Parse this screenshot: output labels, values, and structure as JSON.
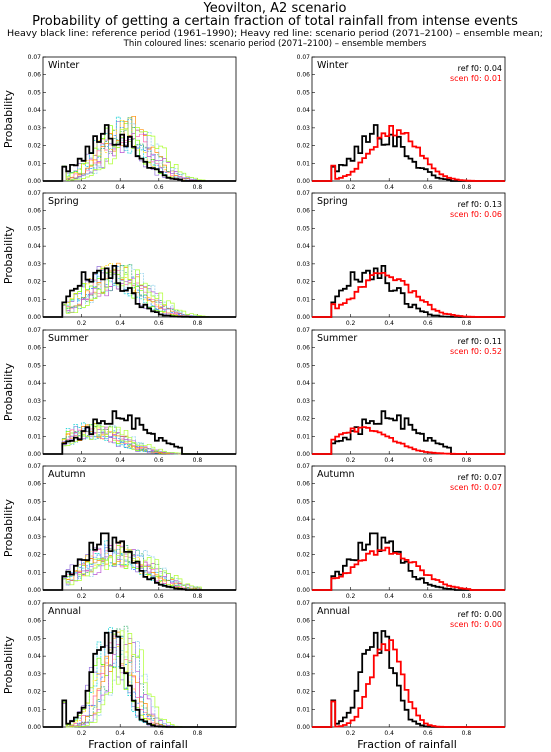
{
  "header": {
    "title": "Yeovilton, A2 scenario",
    "subtitle": "Probability of getting a certain fraction of total rainfall from intense events",
    "legend_line1": "Heavy black line: reference period (1961–1990); Heavy red line: scenario period (2071–2100) – ensemble mean;",
    "legend_line2": "Thin coloured lines: scenario period (2071–2100) – ensemble members"
  },
  "colors": {
    "reference": "#000000",
    "scenario_mean": "#ff0000",
    "members": [
      "#9370db",
      "#00ced1",
      "#7fff00",
      "#ffd700",
      "#ff69b4",
      "#1e90ff",
      "#ff8c00",
      "#3cb371",
      "#ba55d3",
      "#87ceeb",
      "#adff2f"
    ]
  },
  "chart_data": {
    "type": "line",
    "step": true,
    "xlabel": "Fraction of rainfall",
    "ylabel": "Probability",
    "xlim": [
      0,
      1
    ],
    "ylim": [
      0,
      0.07
    ],
    "xticks": [
      "0.2",
      "0.4",
      "0.6",
      "0.8"
    ],
    "xtick_values": [
      0.2,
      0.4,
      0.6,
      0.8
    ],
    "yticks": [
      "0.00",
      "0.01",
      "0.02",
      "0.03",
      "0.04",
      "0.05",
      "0.06",
      "0.07"
    ],
    "ytick_values": [
      0,
      0.01,
      0.02,
      0.03,
      0.04,
      0.05,
      0.06,
      0.07
    ],
    "f0_ref_label": "ref  f0:",
    "f0_scen_label": "scen f0:",
    "panels": [
      {
        "season": "Winter",
        "ref_f0": "0.04",
        "scen_f0": "0.01",
        "ref": {
          "mu": 0.36,
          "sd": 0.13,
          "peak": 0.027,
          "start": 0.1,
          "end": 0.72
        },
        "scen": {
          "mu": 0.43,
          "sd": 0.12,
          "peak": 0.029,
          "start": 0.1,
          "end": 0.83
        }
      },
      {
        "season": "Spring",
        "ref_f0": "0.13",
        "scen_f0": "0.06",
        "ref": {
          "mu": 0.3,
          "sd": 0.13,
          "peak": 0.027,
          "start": 0.1,
          "end": 0.75
        },
        "scen": {
          "mu": 0.38,
          "sd": 0.14,
          "peak": 0.024,
          "start": 0.1,
          "end": 0.85
        }
      },
      {
        "season": "Summer",
        "ref_f0": "0.11",
        "scen_f0": "0.52",
        "ref": {
          "mu": 0.38,
          "sd": 0.17,
          "peak": 0.02,
          "start": 0.1,
          "end": 0.72
        },
        "scen": {
          "mu": 0.26,
          "sd": 0.15,
          "peak": 0.014,
          "start": 0.1,
          "end": 0.78
        }
      },
      {
        "season": "Autumn",
        "ref_f0": "0.07",
        "scen_f0": "0.07",
        "ref": {
          "mu": 0.33,
          "sd": 0.14,
          "peak": 0.026,
          "start": 0.1,
          "end": 0.73
        },
        "scen": {
          "mu": 0.38,
          "sd": 0.16,
          "peak": 0.022,
          "start": 0.1,
          "end": 0.82
        }
      },
      {
        "season": "Annual",
        "ref_f0": "0.00",
        "scen_f0": "0.00",
        "ref": {
          "mu": 0.34,
          "sd": 0.08,
          "peak": 0.05,
          "start": 0.1,
          "end": 0.7
        },
        "scen": {
          "mu": 0.39,
          "sd": 0.08,
          "peak": 0.048,
          "start": 0.1,
          "end": 0.8
        }
      }
    ]
  }
}
